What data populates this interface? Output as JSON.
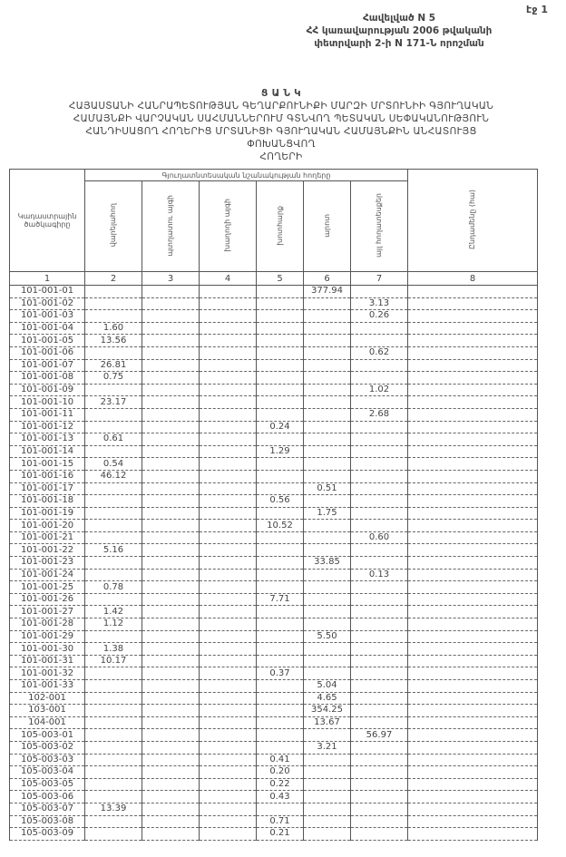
{
  "page_number": "էջ 1",
  "annex": {
    "line1": "Հավելված N 5",
    "line2": "ՀՀ կառավարության 2006 թվականի",
    "line3": "փետրվարի 2-ի N 171-Ն որոշման"
  },
  "title": {
    "heading": "Ց Ա Ն Կ",
    "line1": "ՀԱՅԱՍՏԱՆԻ ՀԱՆՐԱՊԵՏՈՒԹՅԱՆ ԳԵՂԱՐՔՈՒՆԻՔԻ ՄԱՐԶԻ ՄՐՏՈՒՆԻԻ ԳՅՈՒՂԱԿԱՆ",
    "line2": "ՀԱՄԱՅՆՔԻ ՎԱՐՉԱԿԱՆ ՍԱՀՄԱՆՆԵՐՈՒՄ ԳՏՆՎՈՂ ՊԵՏԱԿԱՆ ՍԵՓԱԿԱՆՈՒԹՅՈՒՆ",
    "line3": "ՀԱՆԴԻՍԱՑՈՂ ՀՈՂԵՐԻՑ ՄՐՏԱՆԻՑԻ ԳՅՈՒՂԱԿԱՆ ՀԱՄԱՅՆՔԻՆ ԱՆՀԱՏՈՒՅՑ ՓՈԽԱՆՑՎՈՂ",
    "line4": "ՀՈՂԵՐԻ"
  },
  "table": {
    "group_header": "Գյուղատնտեսական նշանակության հողերը",
    "headers": [
      "Կադաստրային ծածկագիրը",
      "վարելահող",
      "պտղատու այգի",
      "խաղողի այգի",
      "խոտհարք",
      "արոտ",
      "այլ հողատեսքեր",
      "Ընդամենը (հա)"
    ],
    "column_numbers": [
      "1",
      "2",
      "3",
      "4",
      "5",
      "6",
      "7",
      "8"
    ],
    "rows": [
      [
        "101-001-01",
        "",
        "",
        "",
        "",
        "377.94",
        "",
        ""
      ],
      [
        "101-001-02",
        "",
        "",
        "",
        "",
        "",
        "3.13",
        ""
      ],
      [
        "101-001-03",
        "",
        "",
        "",
        "",
        "",
        "0.26",
        ""
      ],
      [
        "101-001-04",
        "1.60",
        "",
        "",
        "",
        "",
        "",
        ""
      ],
      [
        "101-001-05",
        "13.56",
        "",
        "",
        "",
        "",
        "",
        ""
      ],
      [
        "101-001-06",
        "",
        "",
        "",
        "",
        "",
        "0.62",
        ""
      ],
      [
        "101-001-07",
        "26.81",
        "",
        "",
        "",
        "",
        "",
        ""
      ],
      [
        "101-001-08",
        "0.75",
        "",
        "",
        "",
        "",
        "",
        ""
      ],
      [
        "101-001-09",
        "",
        "",
        "",
        "",
        "",
        "1.02",
        ""
      ],
      [
        "101-001-10",
        "23.17",
        "",
        "",
        "",
        "",
        "",
        ""
      ],
      [
        "101-001-11",
        "",
        "",
        "",
        "",
        "",
        "2.68",
        ""
      ],
      [
        "101-001-12",
        "",
        "",
        "",
        "0.24",
        "",
        "",
        ""
      ],
      [
        "101-001-13",
        "0.61",
        "",
        "",
        "",
        "",
        "",
        ""
      ],
      [
        "101-001-14",
        "",
        "",
        "",
        "1.29",
        "",
        "",
        ""
      ],
      [
        "101-001-15",
        "0.54",
        "",
        "",
        "",
        "",
        "",
        ""
      ],
      [
        "101-001-16",
        "46.12",
        "",
        "",
        "",
        "",
        "",
        ""
      ],
      [
        "101-001-17",
        "",
        "",
        "",
        "",
        "0.51",
        "",
        ""
      ],
      [
        "101-001-18",
        "",
        "",
        "",
        "0.56",
        "",
        "",
        ""
      ],
      [
        "101-001-19",
        "",
        "",
        "",
        "",
        "1.75",
        "",
        ""
      ],
      [
        "101-001-20",
        "",
        "",
        "",
        "10.52",
        "",
        "",
        ""
      ],
      [
        "101-001-21",
        "",
        "",
        "",
        "",
        "",
        "0.60",
        ""
      ],
      [
        "101-001-22",
        "5.16",
        "",
        "",
        "",
        "",
        "",
        ""
      ],
      [
        "101-001-23",
        "",
        "",
        "",
        "",
        "33.85",
        "",
        ""
      ],
      [
        "101-001-24",
        "",
        "",
        "",
        "",
        "",
        "0.13",
        ""
      ],
      [
        "101-001-25",
        "0.78",
        "",
        "",
        "",
        "",
        "",
        ""
      ],
      [
        "101-001-26",
        "",
        "",
        "",
        "7.71",
        "",
        "",
        ""
      ],
      [
        "101-001-27",
        "1.42",
        "",
        "",
        "",
        "",
        "",
        ""
      ],
      [
        "101-001-28",
        "1.12",
        "",
        "",
        "",
        "",
        "",
        ""
      ],
      [
        "101-001-29",
        "",
        "",
        "",
        "",
        "5.50",
        "",
        ""
      ],
      [
        "101-001-30",
        "1.38",
        "",
        "",
        "",
        "",
        "",
        ""
      ],
      [
        "101-001-31",
        "10.17",
        "",
        "",
        "",
        "",
        "",
        ""
      ],
      [
        "101-001-32",
        "",
        "",
        "",
        "0.37",
        "",
        "",
        ""
      ],
      [
        "101-001-33",
        "",
        "",
        "",
        "",
        "5.04",
        "",
        ""
      ],
      [
        "102-001",
        "",
        "",
        "",
        "",
        "4.65",
        "",
        ""
      ],
      [
        "103-001",
        "",
        "",
        "",
        "",
        "354.25",
        "",
        ""
      ],
      [
        "104-001",
        "",
        "",
        "",
        "",
        "13.67",
        "",
        ""
      ],
      [
        "105-003-01",
        "",
        "",
        "",
        "",
        "",
        "56.97",
        ""
      ],
      [
        "105-003-02",
        "",
        "",
        "",
        "",
        "3.21",
        "",
        ""
      ],
      [
        "105-003-03",
        "",
        "",
        "",
        "0.41",
        "",
        "",
        ""
      ],
      [
        "105-003-04",
        "",
        "",
        "",
        "0.20",
        "",
        "",
        ""
      ],
      [
        "105-003-05",
        "",
        "",
        "",
        "0.22",
        "",
        "",
        ""
      ],
      [
        "105-003-06",
        "",
        "",
        "",
        "0.43",
        "",
        "",
        ""
      ],
      [
        "105-003-07",
        "13.39",
        "",
        "",
        "",
        "",
        "",
        ""
      ],
      [
        "105-003-08",
        "",
        "",
        "",
        "0.71",
        "",
        "",
        ""
      ],
      [
        "105-003-09",
        "",
        "",
        "",
        "0.21",
        "",
        "",
        ""
      ]
    ]
  }
}
